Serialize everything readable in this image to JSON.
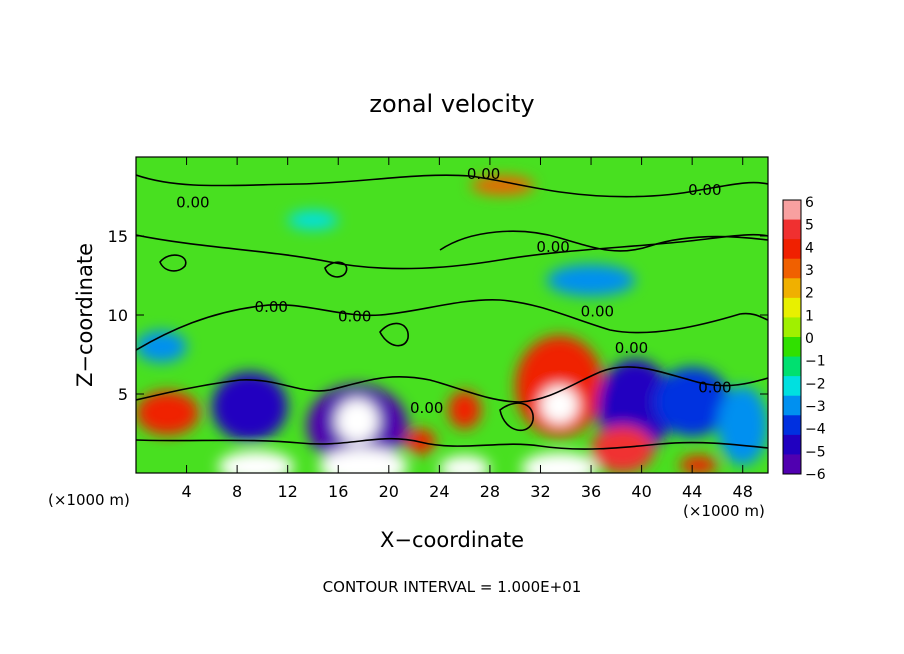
{
  "chart_data": {
    "type": "heatmap",
    "title": "zonal velocity",
    "xlabel": "X−coordinate",
    "ylabel": "Z−coordinate",
    "x_unit_left": "(×1000 m)",
    "x_unit_right": "(×1000 m)",
    "xlim": [
      0,
      50
    ],
    "ylim": [
      0,
      20
    ],
    "x_ticks": [
      4,
      8,
      12,
      16,
      20,
      24,
      28,
      32,
      36,
      40,
      44,
      48
    ],
    "y_ticks": [
      5,
      10,
      15
    ],
    "colorbar": {
      "min": -6,
      "max": 6,
      "ticks": [
        "6",
        "5",
        "4",
        "3",
        "2",
        "1",
        "0",
        "−1",
        "−2",
        "−3",
        "−4",
        "−5",
        "−6"
      ],
      "colors": [
        "#f8a0a0",
        "#f03030",
        "#f02000",
        "#f06000",
        "#f0b000",
        "#e8f000",
        "#a0f000",
        "#30e000",
        "#00e070",
        "#00e0e0",
        "#0090f0",
        "#0030e0",
        "#2000c0",
        "#5000b0"
      ]
    },
    "contours": [
      {
        "label": "0.00",
        "x": 27.5,
        "y": 18.6
      },
      {
        "label": "0.00",
        "x": 4.5,
        "y": 16.8
      },
      {
        "label": "0.00",
        "x": 45.0,
        "y": 17.6
      },
      {
        "label": "0.00",
        "x": 33.0,
        "y": 14.0
      },
      {
        "label": "0.00",
        "x": 10.7,
        "y": 10.2
      },
      {
        "label": "0.00",
        "x": 17.3,
        "y": 9.6
      },
      {
        "label": "0.00",
        "x": 36.5,
        "y": 9.9
      },
      {
        "label": "0.00",
        "x": 39.2,
        "y": 7.6
      },
      {
        "label": "0.00",
        "x": 23.0,
        "y": 3.8
      },
      {
        "label": "0.00",
        "x": 45.8,
        "y": 5.1
      }
    ],
    "blobs": [
      {
        "x": 29,
        "y": 18.2,
        "v": 3,
        "rx": 2.5,
        "ry": 0.6
      },
      {
        "x": 14,
        "y": 16.0,
        "v": -2,
        "rx": 2,
        "ry": 0.6
      },
      {
        "x": 36,
        "y": 12.2,
        "v": -3,
        "rx": 3.5,
        "ry": 1.0
      },
      {
        "x": 2,
        "y": 8.0,
        "v": -3,
        "rx": 2,
        "ry": 1
      },
      {
        "x": 2.5,
        "y": 3.8,
        "v": 4,
        "rx": 2.5,
        "ry": 1.4
      },
      {
        "x": 9,
        "y": 4.2,
        "v": -5,
        "rx": 3,
        "ry": 2.2
      },
      {
        "x": 17.5,
        "y": 3.0,
        "v": -6,
        "rx": 4,
        "ry": 2.6
      },
      {
        "x": 17.5,
        "y": 3.3,
        "v": 6,
        "rx": 1.7,
        "ry": 1.4
      },
      {
        "x": 22.5,
        "y": 2.0,
        "v": 4,
        "rx": 1.2,
        "ry": 0.8
      },
      {
        "x": 26,
        "y": 4.0,
        "v": 4,
        "rx": 1.3,
        "ry": 1.2
      },
      {
        "x": 33.5,
        "y": 5.5,
        "v": 4,
        "rx": 3.5,
        "ry": 3.2
      },
      {
        "x": 33.5,
        "y": 4.3,
        "v": 6,
        "rx": 1.5,
        "ry": 1.2
      },
      {
        "x": 39.5,
        "y": 4.2,
        "v": -5,
        "rx": 3,
        "ry": 3
      },
      {
        "x": 38.5,
        "y": 1.5,
        "v": 5,
        "rx": 2.5,
        "ry": 1.5
      },
      {
        "x": 9.5,
        "y": 0.4,
        "v": 6,
        "rx": 3,
        "ry": 1.0
      },
      {
        "x": 18,
        "y": 0.4,
        "v": 6,
        "rx": 3.5,
        "ry": 1.2
      },
      {
        "x": 26,
        "y": 0.3,
        "v": 6,
        "rx": 2,
        "ry": 0.8
      },
      {
        "x": 33.5,
        "y": 0.3,
        "v": 6,
        "rx": 3,
        "ry": 1.0
      },
      {
        "x": 44,
        "y": 4.5,
        "v": -4,
        "rx": 3,
        "ry": 2.2
      },
      {
        "x": 48,
        "y": 3.0,
        "v": -3,
        "rx": 2,
        "ry": 2.5
      },
      {
        "x": 44.5,
        "y": 0.5,
        "v": 4,
        "rx": 1.5,
        "ry": 0.6
      }
    ]
  },
  "footer": "CONTOUR INTERVAL = 1.000E+01"
}
